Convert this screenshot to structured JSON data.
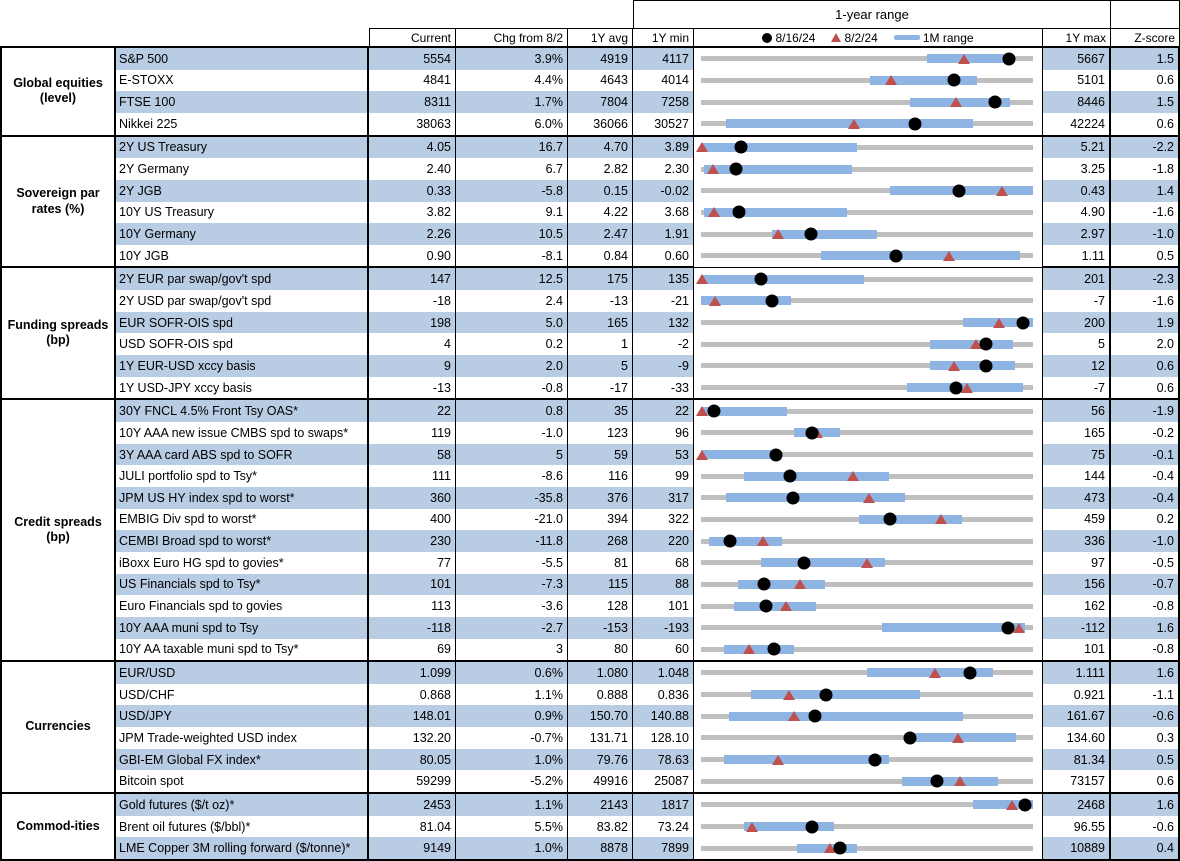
{
  "colors": {
    "stripe": "#b8cce4",
    "bar_blue": "#8db4e2",
    "track_gray": "#bfbfbf",
    "marker_red": "#c0504d",
    "marker_black": "#000000"
  },
  "header": {
    "range_title": "1-year range",
    "col_current": "Current",
    "col_chg": "Chg from 8/2",
    "col_avg": "1Y avg",
    "col_min": "1Y min",
    "col_max": "1Y max",
    "col_z": "Z-score",
    "legend_dot": "8/16/24",
    "legend_tri": "8/2/24",
    "legend_bar": "1M range"
  },
  "chart_data": {
    "type": "table",
    "note": "Each row shows Current, Chg from 8/2, 1Y avg, 1Y min, a 1-year range strip chart (black dot = 8/16/24, red triangle = 8/2/24, blue bar = 1M range; positions normalized 0-1 between 1Y min and 1Y max), 1Y max and Z-score.",
    "sections": [
      {
        "label": "Global equities (level)",
        "rows": [
          {
            "name": "S&P 500",
            "current": "5554",
            "chg": "3.9%",
            "avg": "4919",
            "min": "4117",
            "max": "5667",
            "z": "1.5",
            "dot": 0.927,
            "tri": 0.793,
            "bar": [
              0.68,
              0.92
            ]
          },
          {
            "name": "E-STOXX",
            "current": "4841",
            "chg": "4.4%",
            "avg": "4643",
            "min": "4014",
            "max": "5101",
            "z": "0.6",
            "dot": 0.761,
            "tri": 0.573,
            "bar": [
              0.51,
              0.83
            ]
          },
          {
            "name": "FTSE 100",
            "current": "8311",
            "chg": "1.7%",
            "avg": "7804",
            "min": "7258",
            "max": "8446",
            "z": "1.5",
            "dot": 0.886,
            "tri": 0.769,
            "bar": [
              0.63,
              0.93
            ]
          },
          {
            "name": "Nikkei 225",
            "current": "38063",
            "chg": "6.0%",
            "avg": "36066",
            "min": "30527",
            "max": "42224",
            "z": "0.6",
            "dot": 0.644,
            "tri": 0.46,
            "bar": [
              0.075,
              0.82
            ]
          }
        ]
      },
      {
        "label": "Sovereign par rates (%)",
        "rows": [
          {
            "name": "2Y US Treasury",
            "current": "4.05",
            "chg": "16.7",
            "avg": "4.70",
            "min": "3.89",
            "max": "5.21",
            "z": "-2.2",
            "dot": 0.121,
            "tri": 0.004,
            "bar": [
              0,
              0.47
            ]
          },
          {
            "name": "2Y Germany",
            "current": "2.40",
            "chg": "6.7",
            "avg": "2.82",
            "min": "2.30",
            "max": "3.25",
            "z": "-1.8",
            "dot": 0.105,
            "tri": 0.035,
            "bar": [
              0.01,
              0.455
            ]
          },
          {
            "name": "2Y JGB",
            "current": "0.33",
            "chg": "-5.8",
            "avg": "0.15",
            "min": "-0.02",
            "max": "0.43",
            "z": "1.4",
            "dot": 0.778,
            "tri": 0.907,
            "bar": [
              0.57,
              1
            ]
          },
          {
            "name": "10Y US Treasury",
            "current": "3.82",
            "chg": "9.1",
            "avg": "4.22",
            "min": "3.68",
            "max": "4.90",
            "z": "-1.6",
            "dot": 0.115,
            "tri": 0.04,
            "bar": [
              0.01,
              0.44
            ]
          },
          {
            "name": "10Y Germany",
            "current": "2.26",
            "chg": "10.5",
            "avg": "2.47",
            "min": "1.91",
            "max": "2.97",
            "z": "-1.0",
            "dot": 0.33,
            "tri": 0.231,
            "bar": [
              0.215,
              0.53
            ]
          },
          {
            "name": "10Y JGB",
            "current": "0.90",
            "chg": "-8.1",
            "avg": "0.84",
            "min": "0.60",
            "max": "1.11",
            "z": "0.5",
            "dot": 0.588,
            "tri": 0.747,
            "bar": [
              0.36,
              0.96
            ]
          }
        ]
      },
      {
        "label": "Funding spreads (bp)",
        "rows": [
          {
            "name": "2Y EUR par swap/gov't spd",
            "current": "147",
            "chg": "12.5",
            "avg": "175",
            "min": "135",
            "max": "201",
            "z": "-2.3",
            "dot": 0.182,
            "tri": 0.004,
            "bar": [
              0,
              0.49
            ]
          },
          {
            "name": "2Y USD par swap/gov't spd",
            "current": "-18",
            "chg": "2.4",
            "avg": "-13",
            "min": "-21",
            "max": "-7",
            "z": "-1.6",
            "dot": 0.214,
            "tri": 0.043,
            "bar": [
              0,
              0.27
            ]
          },
          {
            "name": "EUR SOFR-OIS spd",
            "current": "198",
            "chg": "5.0",
            "avg": "165",
            "min": "132",
            "max": "200",
            "z": "1.9",
            "dot": 0.971,
            "tri": 0.897,
            "bar": [
              0.79,
              1
            ]
          },
          {
            "name": "USD SOFR-OIS spd",
            "current": "4",
            "chg": "0.2",
            "avg": "1",
            "min": "-2",
            "max": "5",
            "z": "2.0",
            "dot": 0.857,
            "tri": 0.829,
            "bar": [
              0.69,
              0.94
            ]
          },
          {
            "name": "1Y EUR-USD xccy basis",
            "current": "9",
            "chg": "2.0",
            "avg": "5",
            "min": "-9",
            "max": "12",
            "z": "0.6",
            "dot": 0.857,
            "tri": 0.762,
            "bar": [
              0.69,
              0.945
            ]
          },
          {
            "name": "1Y USD-JPY xccy basis",
            "current": "-13",
            "chg": "-0.8",
            "avg": "-17",
            "min": "-33",
            "max": "-7",
            "z": "0.6",
            "dot": 0.769,
            "tri": 0.8,
            "bar": [
              0.62,
              0.97
            ]
          }
        ]
      },
      {
        "label": "Credit spreads (bp)",
        "rows": [
          {
            "name": "30Y FNCL 4.5% Front Tsy OAS*",
            "current": "22",
            "chg": "0.8",
            "avg": "35",
            "min": "22",
            "max": "56",
            "z": "-1.9",
            "dot": 0.04,
            "tri": 0.004,
            "bar": [
              0,
              0.26
            ]
          },
          {
            "name": "10Y AAA new issue CMBS spd to swaps*",
            "current": "119",
            "chg": "-1.0",
            "avg": "123",
            "min": "96",
            "max": "165",
            "z": "-0.2",
            "dot": 0.333,
            "tri": 0.348,
            "bar": [
              0.28,
              0.42
            ]
          },
          {
            "name": "3Y AAA card ABS spd to SOFR",
            "current": "58",
            "chg": "5",
            "avg": "59",
            "min": "53",
            "max": "75",
            "z": "-0.1",
            "dot": 0.227,
            "tri": 0.004,
            "bar": [
              0,
              0.225
            ]
          },
          {
            "name": "JULI portfolio spd to Tsy*",
            "current": "111",
            "chg": "-8.6",
            "avg": "116",
            "min": "99",
            "max": "144",
            "z": "-0.4",
            "dot": 0.267,
            "tri": 0.458,
            "bar": [
              0.13,
              0.565
            ]
          },
          {
            "name": "JPM US HY index spd to worst*",
            "current": "360",
            "chg": "-35.8",
            "avg": "376",
            "min": "317",
            "max": "473",
            "z": "-0.4",
            "dot": 0.276,
            "tri": 0.505,
            "bar": [
              0.075,
              0.615
            ]
          },
          {
            "name": "EMBIG Div spd to worst*",
            "current": "400",
            "chg": "-21.0",
            "avg": "394",
            "min": "322",
            "max": "459",
            "z": "0.2",
            "dot": 0.569,
            "tri": 0.723,
            "bar": [
              0.475,
              0.785
            ]
          },
          {
            "name": "CEMBI Broad spd to worst*",
            "current": "230",
            "chg": "-11.8",
            "avg": "268",
            "min": "220",
            "max": "336",
            "z": "-1.0",
            "dot": 0.086,
            "tri": 0.188,
            "bar": [
              0.025,
              0.245
            ]
          },
          {
            "name": "iBoxx Euro HG spd to govies*",
            "current": "77",
            "chg": "-5.5",
            "avg": "81",
            "min": "68",
            "max": "97",
            "z": "-0.5",
            "dot": 0.31,
            "tri": 0.5,
            "bar": [
              0.18,
              0.555
            ]
          },
          {
            "name": "US Financials spd to Tsy*",
            "current": "101",
            "chg": "-7.3",
            "avg": "115",
            "min": "88",
            "max": "156",
            "z": "-0.7",
            "dot": 0.191,
            "tri": 0.299,
            "bar": [
              0.11,
              0.375
            ]
          },
          {
            "name": "Euro Financials spd to govies",
            "current": "113",
            "chg": "-3.6",
            "avg": "128",
            "min": "101",
            "max": "162",
            "z": "-0.8",
            "dot": 0.197,
            "tri": 0.256,
            "bar": [
              0.1,
              0.345
            ]
          },
          {
            "name": "10Y AAA muni spd to Tsy",
            "current": "-118",
            "chg": "-2.7",
            "avg": "-153",
            "min": "-193",
            "max": "-112",
            "z": "1.6",
            "dot": 0.926,
            "tri": 0.959,
            "bar": [
              0.545,
              0.975
            ]
          },
          {
            "name": "10Y AA taxable muni spd to Tsy*",
            "current": "69",
            "chg": "3",
            "avg": "80",
            "min": "60",
            "max": "101",
            "z": "-0.8",
            "dot": 0.22,
            "tri": 0.146,
            "bar": [
              0.07,
              0.28
            ]
          }
        ]
      },
      {
        "label": "Currencies",
        "rows": [
          {
            "name": "EUR/USD",
            "current": "1.099",
            "chg": "0.6%",
            "avg": "1.080",
            "min": "1.048",
            "max": "1.111",
            "z": "1.6",
            "dot": 0.81,
            "tri": 0.705,
            "bar": [
              0.5,
              0.88
            ]
          },
          {
            "name": "USD/CHF",
            "current": "0.868",
            "chg": "1.1%",
            "avg": "0.888",
            "min": "0.836",
            "max": "0.921",
            "z": "-1.1",
            "dot": 0.376,
            "tri": 0.266,
            "bar": [
              0.15,
              0.66
            ]
          },
          {
            "name": "USD/JPY",
            "current": "148.01",
            "chg": "0.9%",
            "avg": "150.70",
            "min": "140.88",
            "max": "161.67",
            "z": "-0.6",
            "dot": 0.343,
            "tri": 0.279,
            "bar": [
              0.085,
              0.79
            ]
          },
          {
            "name": "JPM Trade-weighted USD index",
            "current": "132.20",
            "chg": "-0.7%",
            "avg": "131.71",
            "min": "128.10",
            "max": "134.60",
            "z": "0.3",
            "dot": 0.631,
            "tri": 0.774,
            "bar": [
              0.615,
              0.95
            ]
          },
          {
            "name": "GBI-EM Global FX index*",
            "current": "80.05",
            "chg": "1.0%",
            "avg": "79.76",
            "min": "78.63",
            "max": "81.34",
            "z": "0.5",
            "dot": 0.524,
            "tri": 0.232,
            "bar": [
              0.07,
              0.565
            ]
          },
          {
            "name": "Bitcoin spot",
            "current": "59299",
            "chg": "-5.2%",
            "avg": "49916",
            "min": "25087",
            "max": "73157",
            "z": "0.6",
            "dot": 0.712,
            "tri": 0.779,
            "bar": [
              0.605,
              0.895
            ]
          }
        ]
      },
      {
        "label": "Commod-ities",
        "rows": [
          {
            "name": "Gold futures ($/t oz)*",
            "current": "2453",
            "chg": "1.1%",
            "avg": "2143",
            "min": "1817",
            "max": "2468",
            "z": "1.6",
            "dot": 0.977,
            "tri": 0.936,
            "bar": [
              0.82,
              1
            ]
          },
          {
            "name": "Brent oil futures ($/bbl)*",
            "current": "81.04",
            "chg": "5.5%",
            "avg": "83.82",
            "min": "73.24",
            "max": "96.55",
            "z": "-0.6",
            "dot": 0.335,
            "tri": 0.153,
            "bar": [
              0.13,
              0.4
            ]
          },
          {
            "name": "LME Copper 3M rolling forward ($/tonne)*",
            "current": "9149",
            "chg": "1.0%",
            "avg": "8878",
            "min": "7899",
            "max": "10889",
            "z": "0.4",
            "dot": 0.418,
            "tri": 0.388,
            "bar": [
              0.29,
              0.47
            ]
          }
        ]
      }
    ]
  }
}
